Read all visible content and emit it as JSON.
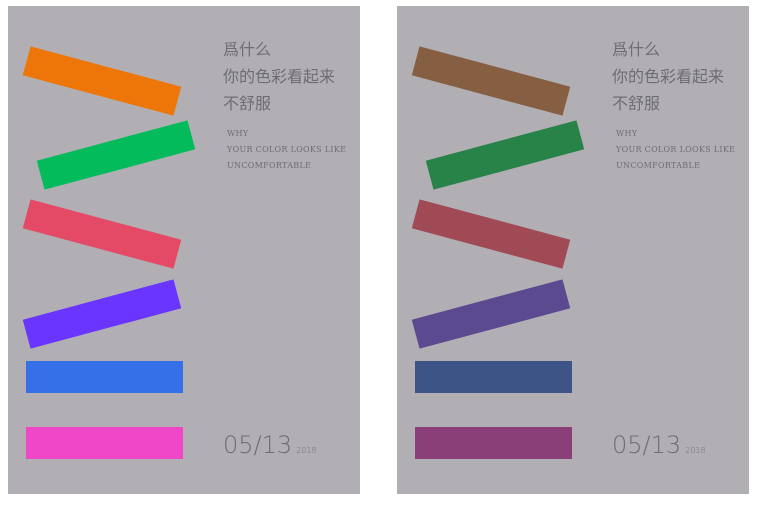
{
  "posters": [
    {
      "variant": "saturated",
      "title_zh": [
        "爲什么",
        "你的色彩看起来",
        "不舒服"
      ],
      "title_en": [
        "WHY",
        "YOUR COLOR LOOKS LIKE",
        "UNCOMFORTABLE"
      ],
      "date": "05/13",
      "year": "2018",
      "bar_colors": [
        "#ee7508",
        "#03bb5b",
        "#e44a66",
        "#6a35fe",
        "#3570e8",
        "#f046c8"
      ]
    },
    {
      "variant": "muted",
      "title_zh": [
        "爲什么",
        "你的色彩看起来",
        "不舒服"
      ],
      "title_en": [
        "WHY",
        "YOUR COLOR LOOKS LIKE",
        "UNCOMFORTABLE"
      ],
      "date": "05/13",
      "year": "2018",
      "bar_colors": [
        "#865f42",
        "#288348",
        "#a04a56",
        "#5c4a91",
        "#3d5586",
        "#8a3f78"
      ]
    }
  ]
}
